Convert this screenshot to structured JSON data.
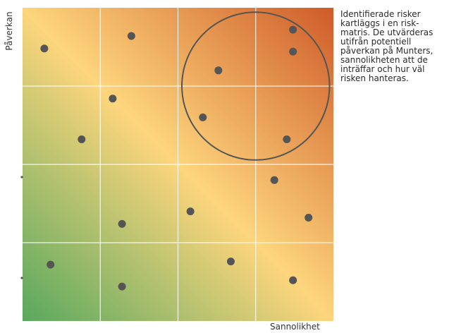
{
  "matrix": {
    "y_axis_label": "Påverkan",
    "x_axis_label": "Sannolikhet",
    "rows": 4,
    "cols": 4,
    "gradient_colors": {
      "low": "#58A85E",
      "mid": "#FDD57C",
      "high": "#CF5B28"
    },
    "grid_line_color": "#FFFFFF",
    "dot_color": "#555555",
    "highlight_circle_color": "#555555"
  },
  "description": "Identifierade risker kartläggs i en risk-matris. De utvärderas utifrån potentiell påverkan på Munters, sannolikheten att de inträffar och hur väl risken hanteras.",
  "risks": [
    {
      "sannolikhet": 0.07,
      "paverkan": 0.87
    },
    {
      "sannolikhet": 0.35,
      "paverkan": 0.91
    },
    {
      "sannolikhet": 0.63,
      "paverkan": 0.8
    },
    {
      "sannolikhet": 0.87,
      "paverkan": 0.93
    },
    {
      "sannolikhet": 0.87,
      "paverkan": 0.86
    },
    {
      "sannolikhet": 0.29,
      "paverkan": 0.71
    },
    {
      "sannolikhet": 0.58,
      "paverkan": 0.65
    },
    {
      "sannolikhet": 0.19,
      "paverkan": 0.58
    },
    {
      "sannolikhet": 0.85,
      "paverkan": 0.58
    },
    {
      "sannolikhet": 0.81,
      "paverkan": 0.45
    },
    {
      "sannolikhet": 0.54,
      "paverkan": 0.35
    },
    {
      "sannolikhet": 0.92,
      "paverkan": 0.33
    },
    {
      "sannolikhet": 0.32,
      "paverkan": 0.31
    },
    {
      "sannolikhet": 0.67,
      "paverkan": 0.19
    },
    {
      "sannolikhet": 0.09,
      "paverkan": 0.18
    },
    {
      "sannolikhet": 0.87,
      "paverkan": 0.13
    },
    {
      "sannolikhet": 0.32,
      "paverkan": 0.11
    }
  ],
  "highlight": {
    "sannolikhet": 0.75,
    "paverkan": 0.75,
    "radius_cells": 0.95
  }
}
